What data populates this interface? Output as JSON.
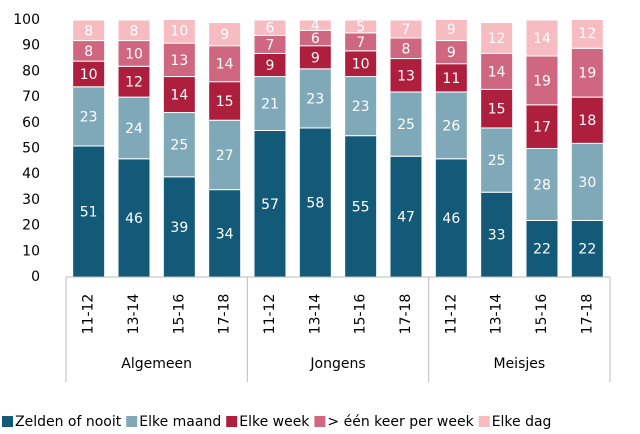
{
  "chart_data": {
    "type": "stacked_bar",
    "categories": [
      "11-12",
      "13-14",
      "15-16",
      "17-18",
      "11-12",
      "13-14",
      "15-16",
      "17-18",
      "11-12",
      "13-14",
      "15-16",
      "17-18"
    ],
    "groups": [
      "Algemeen",
      "Jongens",
      "Meisjes"
    ],
    "series": [
      {
        "name": "Zelden of nooit",
        "color": "#135a78",
        "values": [
          51,
          46,
          39,
          34,
          57,
          58,
          55,
          47,
          46,
          33,
          22,
          22
        ]
      },
      {
        "name": "Elke maand",
        "color": "#7fa9b9",
        "values": [
          23,
          24,
          25,
          27,
          21,
          23,
          23,
          25,
          26,
          25,
          28,
          30
        ]
      },
      {
        "name": "Elke week",
        "color": "#ae1f3e",
        "values": [
          10,
          12,
          14,
          15,
          9,
          9,
          10,
          13,
          11,
          15,
          17,
          18
        ]
      },
      {
        "name": "> één keer per week",
        "color": "#cf6780",
        "values": [
          8,
          10,
          13,
          14,
          7,
          6,
          7,
          8,
          9,
          14,
          19,
          19
        ]
      },
      {
        "name": "Elke dag",
        "color": "#f6bcc1",
        "values": [
          8,
          8,
          10,
          9,
          6,
          4,
          5,
          7,
          9,
          12,
          14,
          12
        ]
      }
    ],
    "ylim": [
      0,
      100
    ],
    "yticks": [
      0,
      10,
      20,
      30,
      40,
      50,
      60,
      70,
      80,
      90,
      100
    ]
  }
}
